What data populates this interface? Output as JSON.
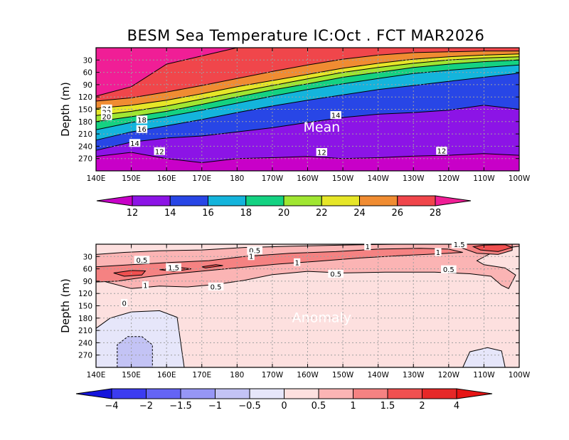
{
  "title": "BESM Sea Temperature  IC:Oct . FCT MAR2026",
  "chart_data": [
    {
      "type": "heatmap",
      "panel": "mean",
      "panel_label": "Mean",
      "ylabel": "Depth (m)",
      "x": [
        "140E",
        "150E",
        "160E",
        "170E",
        "180",
        "170W",
        "160W",
        "150W",
        "140W",
        "130W",
        "120W",
        "110W",
        "100W"
      ],
      "y": [
        30,
        60,
        90,
        120,
        150,
        180,
        210,
        240,
        270
      ],
      "xlim_lon_east": [
        140,
        260
      ],
      "ylim": [
        0,
        300
      ],
      "contour_levels": [
        12,
        14,
        16,
        18,
        20,
        22,
        24,
        26,
        28
      ],
      "isotherm_depths": [
        {
          "level": 12,
          "depth": [
            265,
            255,
            270,
            280,
            270,
            268,
            265,
            270,
            268,
            264,
            262,
            258,
            262
          ]
        },
        {
          "level": 14,
          "depth": [
            250,
            230,
            220,
            215,
            205,
            195,
            182,
            170,
            162,
            158,
            152,
            140,
            150
          ]
        },
        {
          "level": 16,
          "depth": [
            225,
            205,
            190,
            175,
            158,
            142,
            128,
            115,
            102,
            92,
            82,
            72,
            62
          ]
        },
        {
          "level": 18,
          "depth": [
            200,
            182,
            168,
            152,
            135,
            118,
            102,
            88,
            75,
            63,
            55,
            48,
            42
          ]
        },
        {
          "level": 20,
          "depth": [
            180,
            168,
            155,
            138,
            120,
            103,
            88,
            72,
            60,
            48,
            40,
            34,
            30
          ]
        },
        {
          "level": 22,
          "depth": [
            165,
            155,
            142,
            125,
            108,
            92,
            76,
            60,
            48,
            38,
            30,
            25,
            22
          ]
        },
        {
          "level": 24,
          "depth": [
            148,
            140,
            128,
            112,
            95,
            80,
            65,
            50,
            38,
            28,
            22,
            18,
            15
          ]
        },
        {
          "level": 26,
          "depth": [
            130,
            122,
            108,
            92,
            75,
            58,
            42,
            28,
            18,
            12,
            10,
            8,
            8
          ]
        },
        {
          "level": 28,
          "depth": [
            118,
            95,
            40,
            20,
            0,
            0,
            0,
            0,
            0,
            0,
            0,
            0,
            0
          ]
        }
      ],
      "contour_labels": [
        {
          "text": "24",
          "lon": 143,
          "depth": 148
        },
        {
          "text": "22",
          "lon": 143,
          "depth": 157
        },
        {
          "text": "20",
          "lon": 143,
          "depth": 167
        },
        {
          "text": "18",
          "lon": 153,
          "depth": 175
        },
        {
          "text": "16",
          "lon": 153,
          "depth": 198
        },
        {
          "text": "14",
          "lon": 151,
          "depth": 232
        },
        {
          "text": "14",
          "lon": 208,
          "depth": 164
        },
        {
          "text": "12",
          "lon": 158,
          "depth": 252
        },
        {
          "text": "12",
          "lon": 204,
          "depth": 254
        },
        {
          "text": "12",
          "lon": 238,
          "depth": 251
        }
      ],
      "colorbar": {
        "ticks": [
          "12",
          "14",
          "16",
          "18",
          "20",
          "22",
          "24",
          "26",
          "28"
        ],
        "colors": [
          "#c800c8",
          "#8c14e6",
          "#2846e6",
          "#14b4dc",
          "#14d282",
          "#a0e632",
          "#e6e628",
          "#f08c32",
          "#f0464b",
          "#f01e96"
        ]
      }
    },
    {
      "type": "heatmap",
      "panel": "anomaly",
      "panel_label": "Anomaly",
      "ylabel": "Depth (m)",
      "x": [
        "140E",
        "150E",
        "160E",
        "170E",
        "180",
        "170W",
        "160W",
        "150W",
        "140W",
        "130W",
        "120W",
        "110W",
        "100W"
      ],
      "y": [
        30,
        60,
        90,
        120,
        150,
        180,
        210,
        240,
        270
      ],
      "xlim_lon_east": [
        140,
        260
      ],
      "ylim": [
        0,
        300
      ],
      "contour_levels": [
        -4,
        -2,
        -1.5,
        -1,
        -0.5,
        0,
        0.5,
        1,
        1.5,
        2,
        4
      ],
      "contour_labels": [
        {
          "text": "0.5",
          "lon": 185,
          "depth": 15
        },
        {
          "text": "1",
          "lon": 217,
          "depth": 5
        },
        {
          "text": "1.5",
          "lon": 243,
          "depth": 0
        },
        {
          "text": "1",
          "lon": 237,
          "depth": 19
        },
        {
          "text": "0.5",
          "lon": 153,
          "depth": 38
        },
        {
          "text": "1",
          "lon": 184,
          "depth": 29
        },
        {
          "text": "1",
          "lon": 197,
          "depth": 44
        },
        {
          "text": "1.5",
          "lon": 162,
          "depth": 56
        },
        {
          "text": "0.5",
          "lon": 208,
          "depth": 72
        },
        {
          "text": "0.5",
          "lon": 240,
          "depth": 61
        },
        {
          "text": "1",
          "lon": 154,
          "depth": 100
        },
        {
          "text": "0.5",
          "lon": 174,
          "depth": 103
        },
        {
          "text": "0",
          "lon": 148,
          "depth": 143
        }
      ],
      "colorbar": {
        "ticks": [
          "−4",
          "−2",
          "−1.5",
          "−1",
          "−0.5",
          "0",
          "0.5",
          "1",
          "1.5",
          "2",
          "4"
        ],
        "colors": [
          "#1414dc",
          "#3c3cf0",
          "#6464f5",
          "#9696f5",
          "#c3c3f5",
          "#e6e6fa",
          "#fde0df",
          "#fbb4b4",
          "#f58282",
          "#f05050",
          "#e62828",
          "#e61414"
        ]
      }
    }
  ]
}
